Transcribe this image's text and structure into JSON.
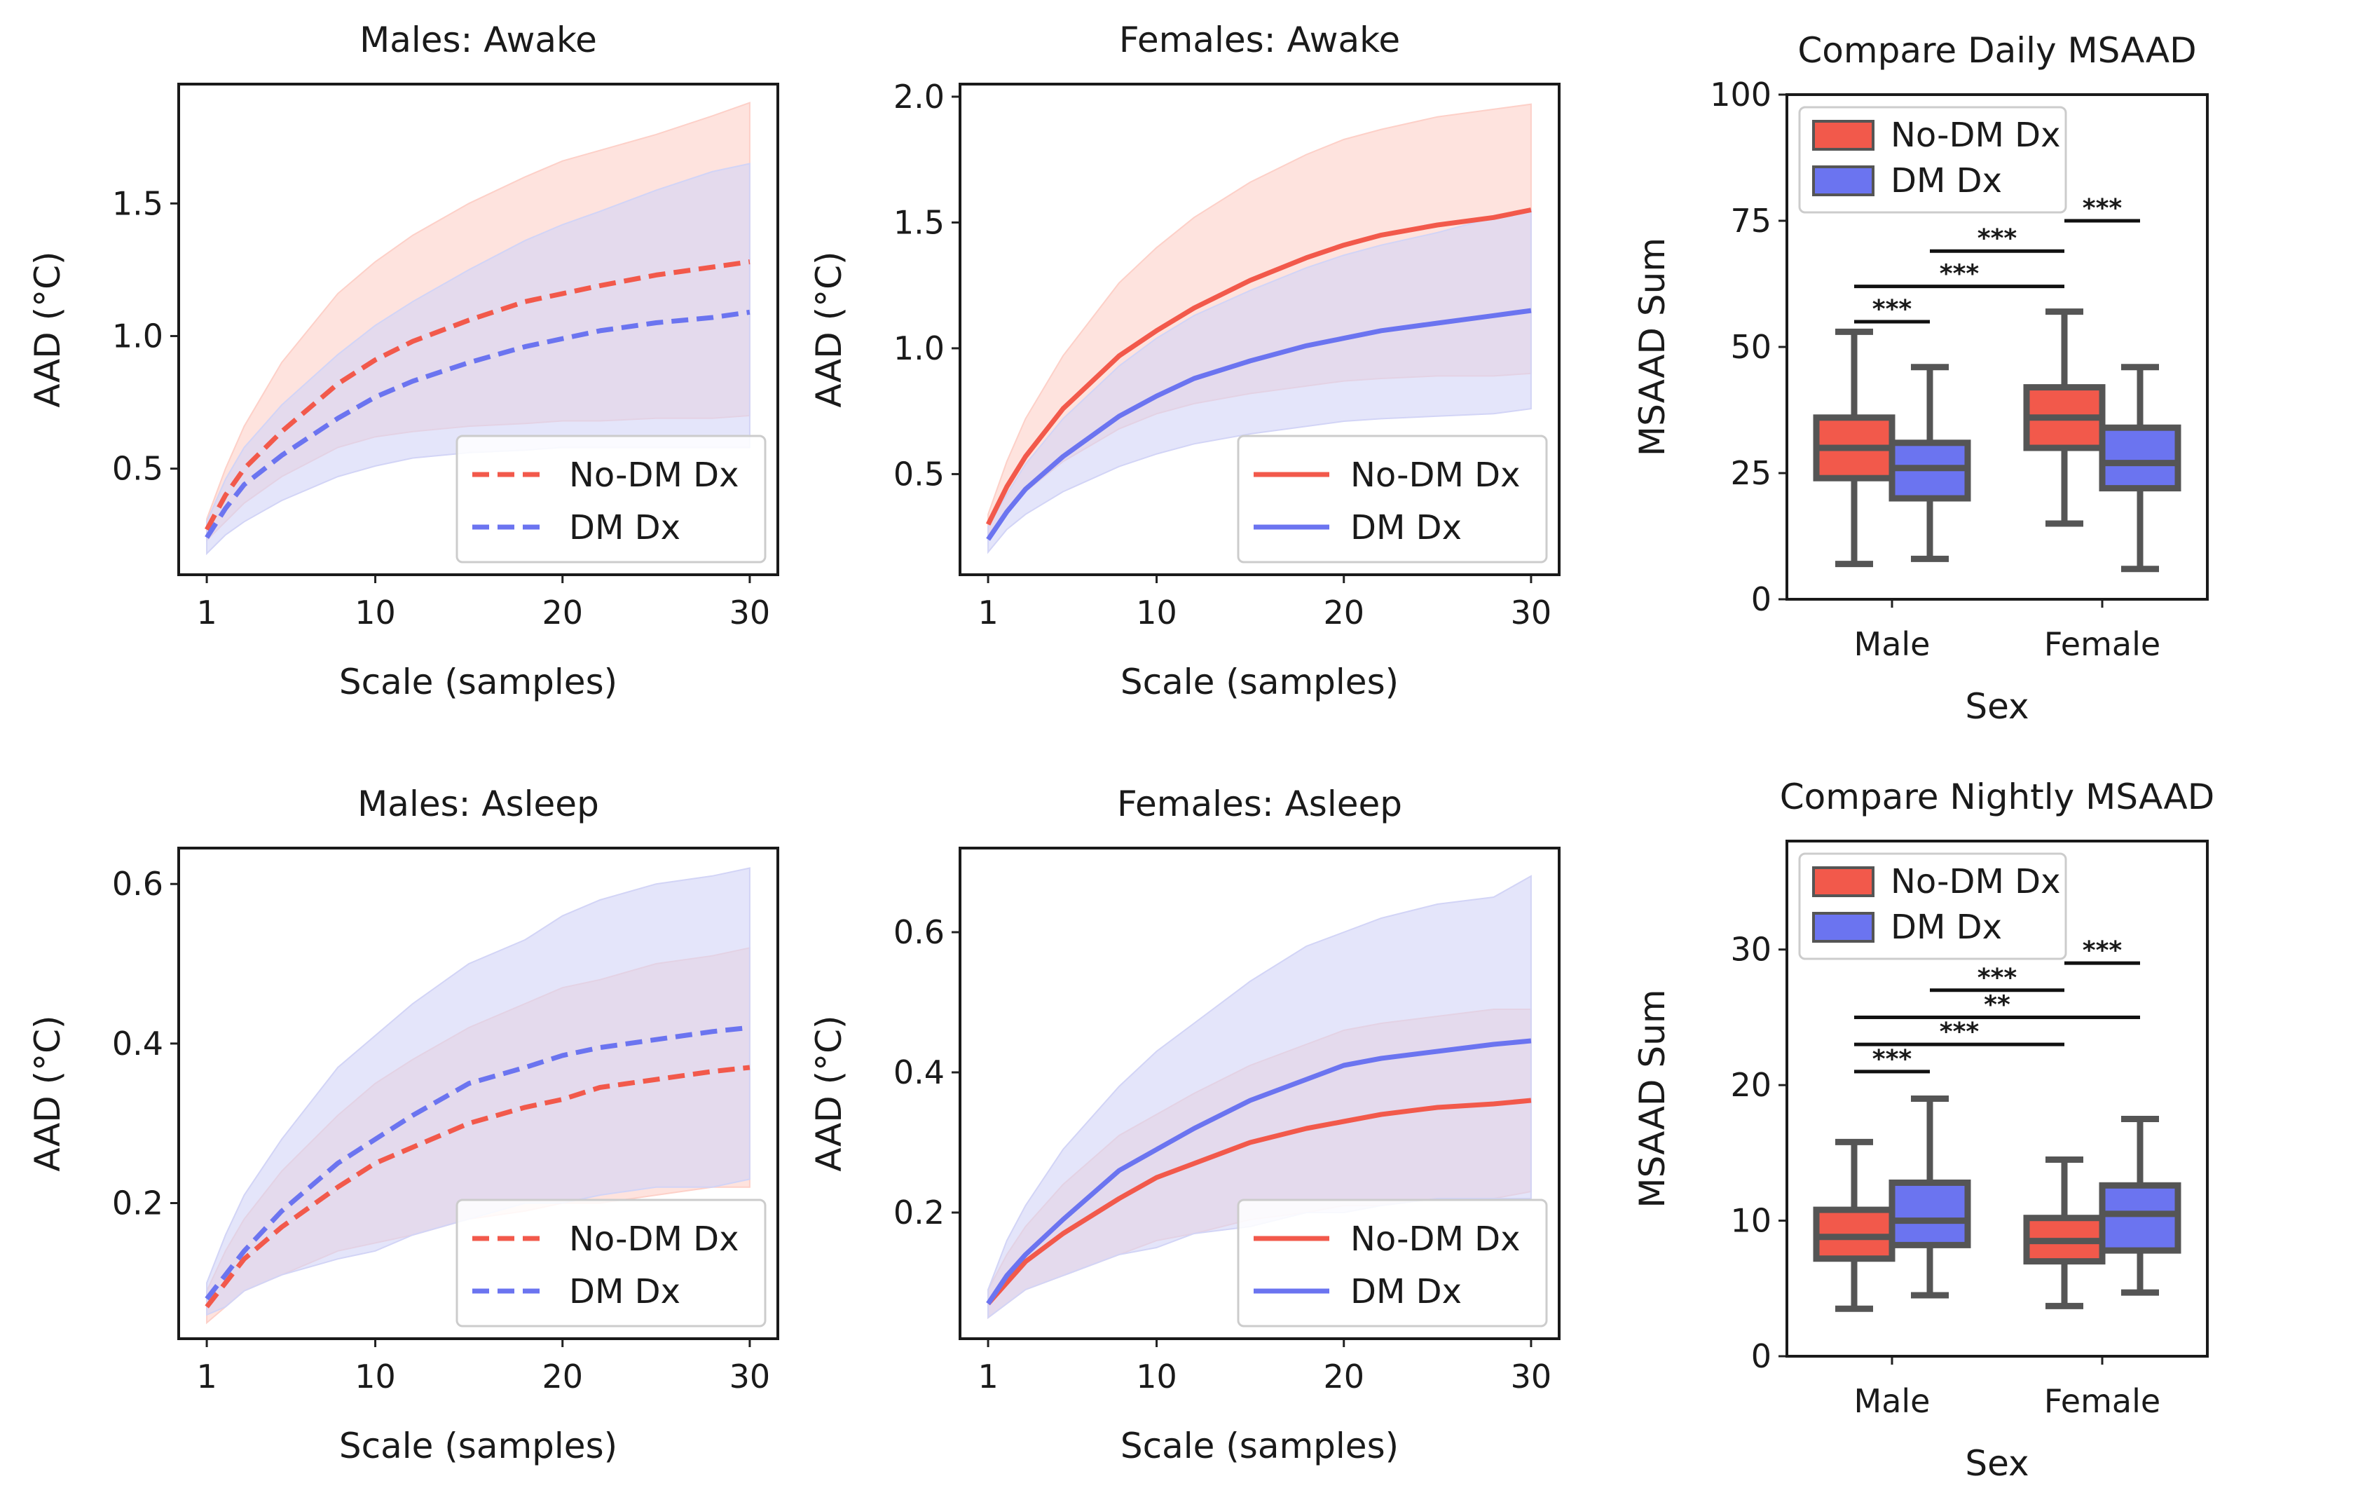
{
  "figure": {
    "colors": {
      "no_dm": "#f2594b",
      "dm": "#6b74f0",
      "no_dm_band": "#fdd0c8",
      "dm_band": "#d2d4f6",
      "whisker": "#555555"
    }
  },
  "chart_data": [
    {
      "type": "line",
      "title": "Males: Awake",
      "xlabel": "Scale (samples)",
      "ylabel": "AAD (°C)",
      "xlim": [
        -0.5,
        31.5
      ],
      "ylim": [
        0.1,
        1.95
      ],
      "xticks": [
        1,
        10,
        20,
        30
      ],
      "yticks": [
        0.5,
        1.0,
        1.5
      ],
      "ytick_format": 1,
      "line_style": "dashed",
      "x": [
        1,
        2,
        3,
        5,
        8,
        10,
        12,
        15,
        18,
        20,
        22,
        25,
        28,
        30
      ],
      "series": [
        {
          "name": "No-DM Dx",
          "values": [
            0.27,
            0.4,
            0.5,
            0.64,
            0.82,
            0.91,
            0.98,
            1.06,
            1.13,
            1.16,
            1.19,
            1.23,
            1.26,
            1.28
          ],
          "lower": [
            0.23,
            0.3,
            0.37,
            0.47,
            0.58,
            0.62,
            0.64,
            0.66,
            0.67,
            0.68,
            0.68,
            0.69,
            0.69,
            0.7
          ],
          "upper": [
            0.31,
            0.5,
            0.66,
            0.9,
            1.16,
            1.28,
            1.38,
            1.5,
            1.6,
            1.66,
            1.7,
            1.76,
            1.83,
            1.88
          ]
        },
        {
          "name": "DM Dx",
          "values": [
            0.24,
            0.35,
            0.44,
            0.55,
            0.69,
            0.77,
            0.83,
            0.9,
            0.96,
            0.99,
            1.02,
            1.05,
            1.07,
            1.09
          ],
          "lower": [
            0.18,
            0.25,
            0.3,
            0.38,
            0.47,
            0.51,
            0.54,
            0.56,
            0.57,
            0.58,
            0.58,
            0.58,
            0.58,
            0.58
          ],
          "upper": [
            0.3,
            0.46,
            0.58,
            0.74,
            0.93,
            1.04,
            1.13,
            1.25,
            1.36,
            1.42,
            1.47,
            1.55,
            1.62,
            1.65
          ]
        }
      ],
      "legend": "lower right"
    },
    {
      "type": "line",
      "title": "Females: Awake",
      "xlabel": "Scale (samples)",
      "ylabel": "AAD (°C)",
      "xlim": [
        -0.5,
        31.5
      ],
      "ylim": [
        0.1,
        2.05
      ],
      "xticks": [
        1,
        10,
        20,
        30
      ],
      "yticks": [
        0.5,
        1.0,
        1.5,
        2.0
      ],
      "ytick_format": 1,
      "line_style": "solid",
      "x": [
        1,
        2,
        3,
        5,
        8,
        10,
        12,
        15,
        18,
        20,
        22,
        25,
        28,
        30
      ],
      "series": [
        {
          "name": "No-DM Dx",
          "values": [
            0.3,
            0.45,
            0.57,
            0.76,
            0.97,
            1.07,
            1.16,
            1.27,
            1.36,
            1.41,
            1.45,
            1.49,
            1.52,
            1.55
          ],
          "lower": [
            0.26,
            0.35,
            0.43,
            0.55,
            0.68,
            0.74,
            0.78,
            0.82,
            0.85,
            0.87,
            0.88,
            0.89,
            0.89,
            0.9
          ],
          "upper": [
            0.34,
            0.55,
            0.72,
            0.97,
            1.26,
            1.4,
            1.52,
            1.66,
            1.77,
            1.83,
            1.87,
            1.92,
            1.95,
            1.97
          ]
        },
        {
          "name": "DM Dx",
          "values": [
            0.24,
            0.35,
            0.44,
            0.57,
            0.73,
            0.81,
            0.88,
            0.95,
            1.01,
            1.04,
            1.07,
            1.1,
            1.13,
            1.15
          ],
          "lower": [
            0.19,
            0.28,
            0.34,
            0.43,
            0.53,
            0.58,
            0.62,
            0.66,
            0.69,
            0.71,
            0.72,
            0.73,
            0.74,
            0.76
          ],
          "upper": [
            0.29,
            0.42,
            0.54,
            0.72,
            0.93,
            1.04,
            1.13,
            1.23,
            1.32,
            1.37,
            1.41,
            1.46,
            1.52,
            1.55
          ]
        }
      ],
      "legend": "lower right"
    },
    {
      "type": "box",
      "title": "Compare Daily MSAAD",
      "xlabel": "Sex",
      "ylabel": "MSAAD Sum",
      "ylim": [
        0,
        100
      ],
      "yticks": [
        0,
        25,
        50,
        75,
        100
      ],
      "categories": [
        "Male",
        "Female"
      ],
      "series": [
        {
          "name": "No-DM Dx",
          "boxes": [
            {
              "whislo": 7,
              "q1": 24,
              "med": 30,
              "q3": 36,
              "whishi": 53
            },
            {
              "whislo": 15,
              "q1": 30,
              "med": 36,
              "q3": 42,
              "whishi": 57
            }
          ]
        },
        {
          "name": "DM Dx",
          "boxes": [
            {
              "whislo": 8,
              "q1": 20,
              "med": 26,
              "q3": 31,
              "whishi": 46
            },
            {
              "whislo": 6,
              "q1": 22,
              "med": 27,
              "q3": 34,
              "whishi": 46
            }
          ]
        }
      ],
      "significance": [
        {
          "from": "Male No-DM Dx",
          "to": "Male DM Dx",
          "y": 55,
          "label": "***"
        },
        {
          "from": "Male No-DM Dx",
          "to": "Female No-DM Dx",
          "y": 62,
          "label": "***"
        },
        {
          "from": "Male DM Dx",
          "to": "Female No-DM Dx",
          "y": 69,
          "label": "***"
        },
        {
          "from": "Female No-DM Dx",
          "to": "Female DM Dx",
          "y": 75,
          "label": "***"
        }
      ],
      "legend": "upper left"
    },
    {
      "type": "line",
      "title": "Males: Asleep",
      "xlabel": "Scale (samples)",
      "ylabel": "AAD (°C)",
      "xlim": [
        -0.5,
        31.5
      ],
      "ylim": [
        0.03,
        0.645
      ],
      "xticks": [
        1,
        10,
        20,
        30
      ],
      "yticks": [
        0.2,
        0.4,
        0.6
      ],
      "ytick_format": 1,
      "line_style": "dashed",
      "x": [
        1,
        2,
        3,
        5,
        8,
        10,
        12,
        15,
        18,
        20,
        22,
        25,
        28,
        30
      ],
      "series": [
        {
          "name": "No-DM Dx",
          "values": [
            0.07,
            0.1,
            0.13,
            0.17,
            0.22,
            0.25,
            0.27,
            0.3,
            0.32,
            0.33,
            0.345,
            0.355,
            0.365,
            0.37
          ],
          "lower": [
            0.05,
            0.07,
            0.09,
            0.11,
            0.14,
            0.15,
            0.16,
            0.18,
            0.19,
            0.2,
            0.2,
            0.21,
            0.22,
            0.22
          ],
          "upper": [
            0.09,
            0.14,
            0.18,
            0.24,
            0.31,
            0.35,
            0.38,
            0.42,
            0.45,
            0.47,
            0.48,
            0.5,
            0.51,
            0.52
          ]
        },
        {
          "name": "DM Dx",
          "values": [
            0.08,
            0.11,
            0.14,
            0.19,
            0.25,
            0.28,
            0.31,
            0.35,
            0.37,
            0.385,
            0.395,
            0.405,
            0.415,
            0.42
          ],
          "lower": [
            0.06,
            0.07,
            0.09,
            0.11,
            0.13,
            0.14,
            0.16,
            0.18,
            0.2,
            0.2,
            0.21,
            0.22,
            0.22,
            0.23
          ],
          "upper": [
            0.1,
            0.16,
            0.21,
            0.28,
            0.37,
            0.41,
            0.45,
            0.5,
            0.53,
            0.56,
            0.58,
            0.6,
            0.61,
            0.62
          ]
        }
      ],
      "legend": "lower right"
    },
    {
      "type": "line",
      "title": "Females: Asleep",
      "xlabel": "Scale (samples)",
      "ylabel": "AAD (°C)",
      "xlim": [
        -0.5,
        31.5
      ],
      "ylim": [
        0.02,
        0.72
      ],
      "xticks": [
        1,
        10,
        20,
        30
      ],
      "yticks": [
        0.2,
        0.4,
        0.6
      ],
      "ytick_format": 1,
      "line_style": "solid",
      "x": [
        1,
        2,
        3,
        5,
        8,
        10,
        12,
        15,
        18,
        20,
        22,
        25,
        28,
        30
      ],
      "series": [
        {
          "name": "No-DM Dx",
          "values": [
            0.07,
            0.1,
            0.13,
            0.17,
            0.22,
            0.25,
            0.27,
            0.3,
            0.32,
            0.33,
            0.34,
            0.35,
            0.355,
            0.36
          ],
          "lower": [
            0.05,
            0.07,
            0.09,
            0.11,
            0.14,
            0.16,
            0.17,
            0.19,
            0.2,
            0.21,
            0.21,
            0.22,
            0.22,
            0.23
          ],
          "upper": [
            0.09,
            0.14,
            0.18,
            0.24,
            0.31,
            0.34,
            0.37,
            0.41,
            0.44,
            0.46,
            0.47,
            0.48,
            0.49,
            0.49
          ]
        },
        {
          "name": "DM Dx",
          "values": [
            0.07,
            0.11,
            0.14,
            0.19,
            0.26,
            0.29,
            0.32,
            0.36,
            0.39,
            0.41,
            0.42,
            0.43,
            0.44,
            0.445
          ],
          "lower": [
            0.05,
            0.07,
            0.09,
            0.11,
            0.14,
            0.15,
            0.17,
            0.18,
            0.2,
            0.2,
            0.21,
            0.22,
            0.22,
            0.22
          ],
          "upper": [
            0.09,
            0.16,
            0.21,
            0.29,
            0.38,
            0.43,
            0.47,
            0.53,
            0.58,
            0.6,
            0.62,
            0.64,
            0.65,
            0.68
          ]
        }
      ],
      "legend": "lower right"
    },
    {
      "type": "box",
      "title": "Compare Nightly MSAAD",
      "xlabel": "Sex",
      "ylabel": "MSAAD Sum",
      "ylim": [
        0,
        38
      ],
      "yticks": [
        0,
        10,
        20,
        30
      ],
      "categories": [
        "Male",
        "Female"
      ],
      "series": [
        {
          "name": "No-DM Dx",
          "boxes": [
            {
              "whislo": 3.5,
              "q1": 7.2,
              "med": 8.8,
              "q3": 10.8,
              "whishi": 15.8
            },
            {
              "whislo": 3.7,
              "q1": 7.0,
              "med": 8.5,
              "q3": 10.2,
              "whishi": 14.5
            }
          ]
        },
        {
          "name": "DM Dx",
          "boxes": [
            {
              "whislo": 4.5,
              "q1": 8.2,
              "med": 10.0,
              "q3": 12.8,
              "whishi": 19.0
            },
            {
              "whislo": 4.7,
              "q1": 7.8,
              "med": 10.5,
              "q3": 12.6,
              "whishi": 17.5
            }
          ]
        }
      ],
      "significance": [
        {
          "from": "Male No-DM Dx",
          "to": "Male DM Dx",
          "y": 21,
          "label": "***"
        },
        {
          "from": "Male No-DM Dx",
          "to": "Female No-DM Dx",
          "y": 23,
          "label": "***"
        },
        {
          "from": "Male No-DM Dx",
          "to": "Female DM Dx",
          "y": 25,
          "label": "**"
        },
        {
          "from": "Male DM Dx",
          "to": "Female No-DM Dx",
          "y": 27,
          "label": "***"
        },
        {
          "from": "Female No-DM Dx",
          "to": "Female DM Dx",
          "y": 29,
          "label": "***"
        }
      ],
      "legend": "upper left"
    }
  ]
}
